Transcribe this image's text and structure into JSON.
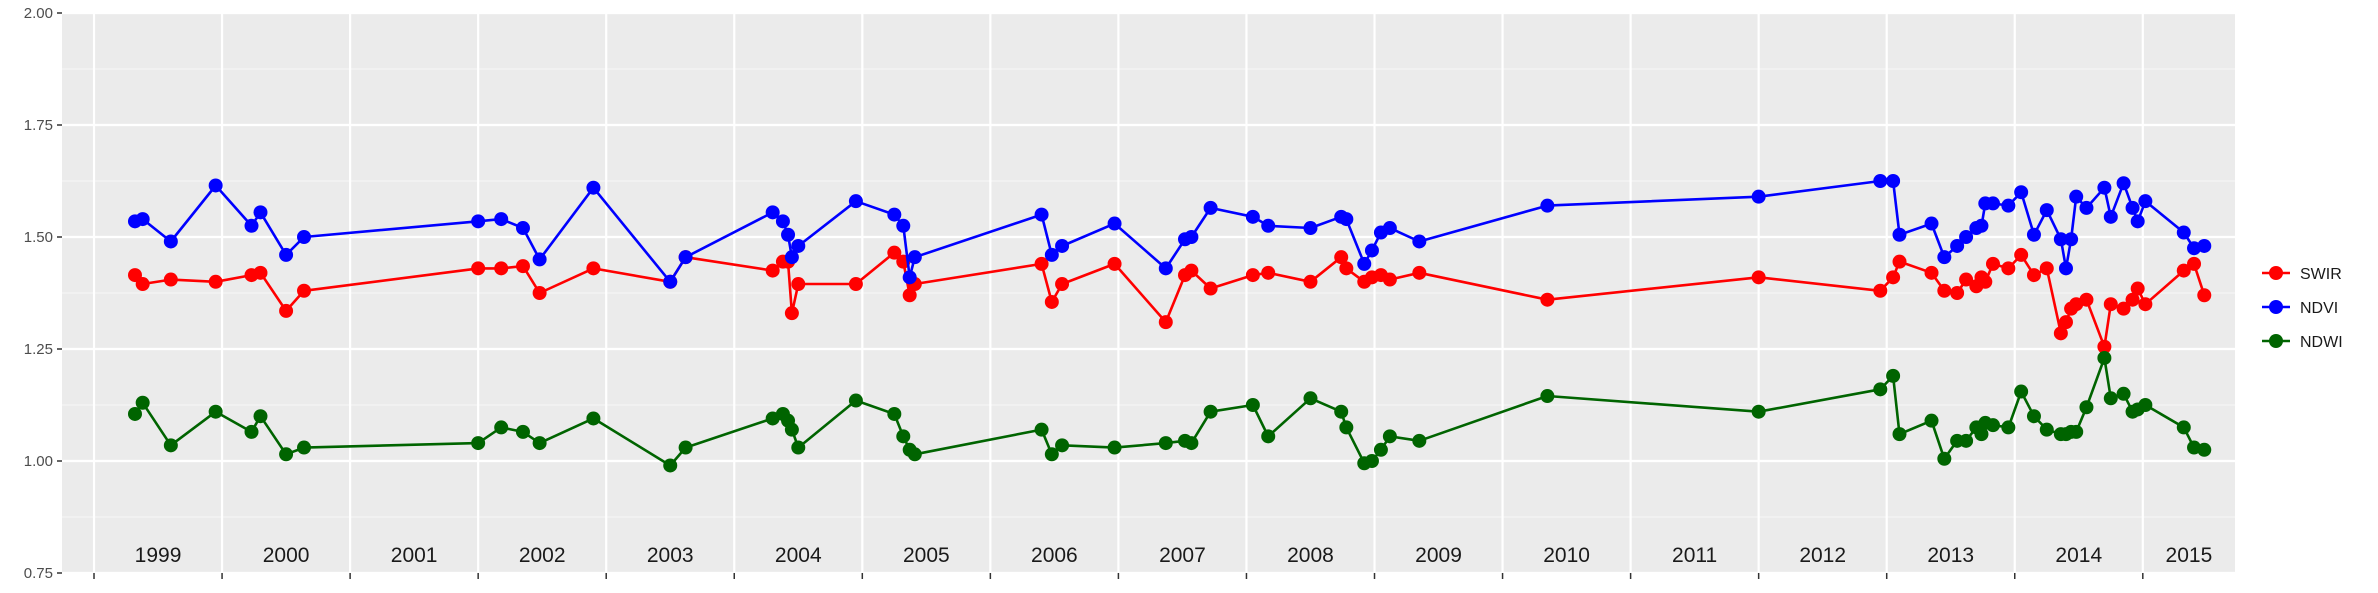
{
  "chart_data": {
    "type": "line",
    "title": "",
    "xlabel": "",
    "ylabel": "",
    "xlim": [
      1998.75,
      2015.72
    ],
    "ylim": [
      0.75,
      2.0
    ],
    "y_ticks": [
      "0.75",
      "1.00",
      "1.25",
      "1.50",
      "1.75",
      "2.00"
    ],
    "y_tick_values": [
      0.75,
      1.0,
      1.25,
      1.5,
      1.75,
      2.0
    ],
    "year_labels": [
      "1999",
      "2000",
      "2001",
      "2002",
      "2003",
      "2004",
      "2005",
      "2006",
      "2007",
      "2008",
      "2009",
      "2010",
      "2011",
      "2012",
      "2013",
      "2014",
      "2015"
    ],
    "x_grid": "yearly",
    "grid": true,
    "panel_background": "#ebebeb",
    "legend_position": "right",
    "series": [
      {
        "name": "SWIR",
        "color": "#ff0000",
        "x": [
          1999.32,
          1999.38,
          1999.6,
          1999.95,
          2000.23,
          2000.3,
          2000.5,
          2000.64,
          2002.0,
          2002.18,
          2002.35,
          2002.48,
          2002.9,
          2003.5,
          2003.62,
          2004.3,
          2004.38,
          2004.42,
          2004.45,
          2004.5,
          2004.95,
          2005.25,
          2005.32,
          2005.37,
          2005.41,
          2006.4,
          2006.48,
          2006.56,
          2006.97,
          2007.37,
          2007.52,
          2007.57,
          2007.72,
          2008.05,
          2008.17,
          2008.5,
          2008.74,
          2008.78,
          2008.92,
          2008.98,
          2009.05,
          2009.12,
          2009.35,
          2010.35,
          2012.0,
          2012.95,
          2013.05,
          2013.1,
          2013.35,
          2013.45,
          2013.55,
          2013.62,
          2013.7,
          2013.74,
          2013.77,
          2013.83,
          2013.95,
          2014.05,
          2014.15,
          2014.25,
          2014.36,
          2014.4,
          2014.44,
          2014.48,
          2014.56,
          2014.7,
          2014.75,
          2014.85,
          2014.92,
          2014.96,
          2015.02,
          2015.32,
          2015.4,
          2015.48
        ],
        "values": [
          1.415,
          1.395,
          1.405,
          1.4,
          1.415,
          1.42,
          1.335,
          1.38,
          1.43,
          1.43,
          1.435,
          1.375,
          1.43,
          1.4,
          1.455,
          1.425,
          1.445,
          1.445,
          1.33,
          1.395,
          1.395,
          1.465,
          1.445,
          1.37,
          1.395,
          1.44,
          1.355,
          1.395,
          1.44,
          1.31,
          1.415,
          1.425,
          1.385,
          1.415,
          1.42,
          1.4,
          1.455,
          1.43,
          1.4,
          1.41,
          1.415,
          1.405,
          1.42,
          1.36,
          1.41,
          1.38,
          1.41,
          1.445,
          1.42,
          1.38,
          1.375,
          1.405,
          1.39,
          1.41,
          1.4,
          1.44,
          1.43,
          1.46,
          1.415,
          1.43,
          1.285,
          1.31,
          1.34,
          1.35,
          1.36,
          1.255,
          1.35,
          1.34,
          1.36,
          1.385,
          1.35,
          1.425,
          1.44,
          1.37
        ]
      },
      {
        "name": "NDVI",
        "color": "#0000ff",
        "x": [
          1999.32,
          1999.38,
          1999.6,
          1999.95,
          2000.23,
          2000.3,
          2000.5,
          2000.64,
          2002.0,
          2002.18,
          2002.35,
          2002.48,
          2002.9,
          2003.5,
          2003.62,
          2004.3,
          2004.38,
          2004.42,
          2004.45,
          2004.5,
          2004.95,
          2005.25,
          2005.32,
          2005.37,
          2005.41,
          2006.4,
          2006.48,
          2006.56,
          2006.97,
          2007.37,
          2007.52,
          2007.57,
          2007.72,
          2008.05,
          2008.17,
          2008.5,
          2008.74,
          2008.78,
          2008.92,
          2008.98,
          2009.05,
          2009.12,
          2009.35,
          2010.35,
          2012.0,
          2012.95,
          2013.05,
          2013.1,
          2013.35,
          2013.45,
          2013.55,
          2013.62,
          2013.7,
          2013.74,
          2013.77,
          2013.83,
          2013.95,
          2014.05,
          2014.15,
          2014.25,
          2014.36,
          2014.4,
          2014.44,
          2014.48,
          2014.56,
          2014.7,
          2014.75,
          2014.85,
          2014.92,
          2014.96,
          2015.02,
          2015.32,
          2015.4,
          2015.48
        ],
        "values": [
          1.535,
          1.54,
          1.49,
          1.615,
          1.525,
          1.555,
          1.46,
          1.5,
          1.535,
          1.54,
          1.52,
          1.45,
          1.61,
          1.4,
          1.455,
          1.555,
          1.535,
          1.505,
          1.455,
          1.48,
          1.58,
          1.55,
          1.525,
          1.41,
          1.455,
          1.55,
          1.46,
          1.48,
          1.53,
          1.43,
          1.495,
          1.5,
          1.565,
          1.545,
          1.525,
          1.52,
          1.545,
          1.54,
          1.44,
          1.47,
          1.51,
          1.52,
          1.49,
          1.57,
          1.59,
          1.625,
          1.625,
          1.505,
          1.53,
          1.455,
          1.48,
          1.5,
          1.52,
          1.525,
          1.575,
          1.575,
          1.57,
          1.6,
          1.505,
          1.56,
          1.495,
          1.43,
          1.495,
          1.59,
          1.565,
          1.61,
          1.545,
          1.62,
          1.565,
          1.535,
          1.58,
          1.51,
          1.475,
          1.48
        ]
      },
      {
        "name": "NDWI",
        "color": "#006400",
        "x": [
          1999.32,
          1999.38,
          1999.6,
          1999.95,
          2000.23,
          2000.3,
          2000.5,
          2000.64,
          2002.0,
          2002.18,
          2002.35,
          2002.48,
          2002.9,
          2003.5,
          2003.62,
          2004.3,
          2004.38,
          2004.42,
          2004.45,
          2004.5,
          2004.95,
          2005.25,
          2005.32,
          2005.37,
          2005.41,
          2006.4,
          2006.48,
          2006.56,
          2006.97,
          2007.37,
          2007.52,
          2007.57,
          2007.72,
          2008.05,
          2008.17,
          2008.5,
          2008.74,
          2008.78,
          2008.92,
          2008.98,
          2009.05,
          2009.12,
          2009.35,
          2010.35,
          2012.0,
          2012.95,
          2013.05,
          2013.1,
          2013.35,
          2013.45,
          2013.55,
          2013.62,
          2013.7,
          2013.74,
          2013.77,
          2013.83,
          2013.95,
          2014.05,
          2014.15,
          2014.25,
          2014.36,
          2014.4,
          2014.44,
          2014.48,
          2014.56,
          2014.7,
          2014.75,
          2014.85,
          2014.92,
          2014.96,
          2015.02,
          2015.32,
          2015.4,
          2015.48
        ],
        "values": [
          1.105,
          1.13,
          1.035,
          1.11,
          1.065,
          1.1,
          1.015,
          1.03,
          1.04,
          1.075,
          1.065,
          1.04,
          1.095,
          0.99,
          1.03,
          1.095,
          1.105,
          1.09,
          1.07,
          1.03,
          1.135,
          1.105,
          1.055,
          1.025,
          1.015,
          1.07,
          1.015,
          1.035,
          1.03,
          1.04,
          1.045,
          1.04,
          1.11,
          1.125,
          1.055,
          1.14,
          1.11,
          1.075,
          0.995,
          1.0,
          1.025,
          1.055,
          1.045,
          1.145,
          1.11,
          1.16,
          1.19,
          1.06,
          1.09,
          1.005,
          1.045,
          1.045,
          1.075,
          1.06,
          1.085,
          1.08,
          1.075,
          1.155,
          1.1,
          1.07,
          1.06,
          1.06,
          1.065,
          1.065,
          1.12,
          1.23,
          1.14,
          1.15,
          1.11,
          1.115,
          1.125,
          1.075,
          1.03,
          1.025
        ]
      }
    ]
  }
}
